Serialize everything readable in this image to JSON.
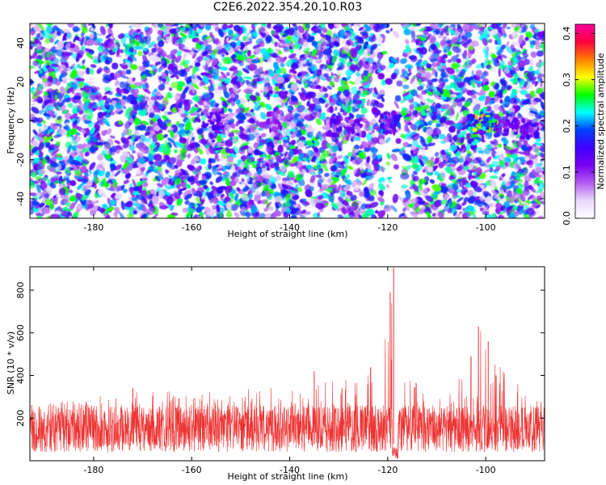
{
  "page": {
    "title": "C2E6.2022.354.20.10.R03"
  },
  "colors": {
    "line": "#ee3333",
    "spectrum_bg": "#ffffff",
    "colormap": [
      "#ffffff",
      "#e9d8fb",
      "#b45cf0",
      "#7a00f0",
      "#3f00ff",
      "#0040ff",
      "#00ffff",
      "#00ff00",
      "#ffff00",
      "#ff8000",
      "#ff0040",
      "#ff00a0"
    ]
  },
  "chart_data": [
    {
      "type": "heatmap",
      "xlabel": "Height of straight line (km)",
      "ylabel": "Frequency (Hz)",
      "xlim": [
        -193,
        -88
      ],
      "ylim": [
        -50,
        50
      ],
      "x_ticks": [
        -180,
        -160,
        -140,
        -120,
        -100
      ],
      "y_ticks": [
        -40,
        -20,
        0,
        20,
        40
      ],
      "x_tick_labels": [
        "-180",
        "-160",
        "-140",
        "-120",
        "-100"
      ],
      "y_tick_labels": [
        "-40",
        "-20",
        "0",
        "20",
        "40"
      ],
      "colorbar": {
        "label": "Normalized spectral amplitude",
        "range": [
          0,
          0.42
        ],
        "ticks": [
          0.0,
          0.1,
          0.2,
          0.3,
          0.4
        ],
        "tick_labels": [
          "0.0",
          "0.1",
          "0.2",
          "0.3",
          "0.4"
        ]
      },
      "background_amplitude": 0.05,
      "blank_bands_km": [
        [
          -121,
          -117
        ]
      ],
      "hotspots": [
        {
          "x": -155,
          "y": 1,
          "amplitude": 0.16
        },
        {
          "x": -143,
          "y": 0,
          "amplitude": 0.12
        },
        {
          "x": -131,
          "y": -3,
          "amplitude": 0.17
        },
        {
          "x": -127,
          "y": -3,
          "amplitude": 0.17
        },
        {
          "x": -120,
          "y": -2,
          "amplitude": 0.22
        },
        {
          "x": -119,
          "y": 0,
          "amplitude": 0.2
        },
        {
          "x": -102,
          "y": -2,
          "amplitude": 0.35
        },
        {
          "x": -99,
          "y": -1,
          "amplitude": 0.3
        },
        {
          "x": -95,
          "y": -3,
          "amplitude": 0.16
        },
        {
          "x": -91,
          "y": -4,
          "amplitude": 0.18
        }
      ]
    },
    {
      "type": "line",
      "xlabel": "Height of straight line (km)",
      "ylabel": "SNR (10 * v/v)",
      "xlim": [
        -193,
        -88
      ],
      "ylim": [
        0,
        910
      ],
      "x_ticks": [
        -180,
        -160,
        -140,
        -120,
        -100
      ],
      "y_ticks": [
        200,
        400,
        600,
        800
      ],
      "x_tick_labels": [
        "-180",
        "-160",
        "-140",
        "-120",
        "-100"
      ],
      "y_tick_labels": [
        "200",
        "400",
        "600",
        "800"
      ],
      "baseline_range": [
        40,
        260
      ],
      "envelope": [
        {
          "x": -193,
          "y": 260
        },
        {
          "x": -180,
          "y": 300
        },
        {
          "x": -172,
          "y": 340
        },
        {
          "x": -160,
          "y": 320
        },
        {
          "x": -140,
          "y": 350
        },
        {
          "x": -130,
          "y": 380
        },
        {
          "x": -124,
          "y": 420
        },
        {
          "x": -120,
          "y": 620
        },
        {
          "x": -119,
          "y": 910
        },
        {
          "x": -118,
          "y": 450
        },
        {
          "x": -110,
          "y": 300
        },
        {
          "x": -104,
          "y": 420
        },
        {
          "x": -101,
          "y": 630
        },
        {
          "x": -99,
          "y": 560
        },
        {
          "x": -95,
          "y": 380
        },
        {
          "x": -88,
          "y": 320
        }
      ],
      "peaks": [
        {
          "x": -119.5,
          "y": 790
        },
        {
          "x": -118.8,
          "y": 905
        },
        {
          "x": -101.5,
          "y": 630
        },
        {
          "x": -99.5,
          "y": 560
        },
        {
          "x": -103,
          "y": 490
        },
        {
          "x": -172,
          "y": 340
        },
        {
          "x": -135,
          "y": 420
        }
      ]
    }
  ]
}
